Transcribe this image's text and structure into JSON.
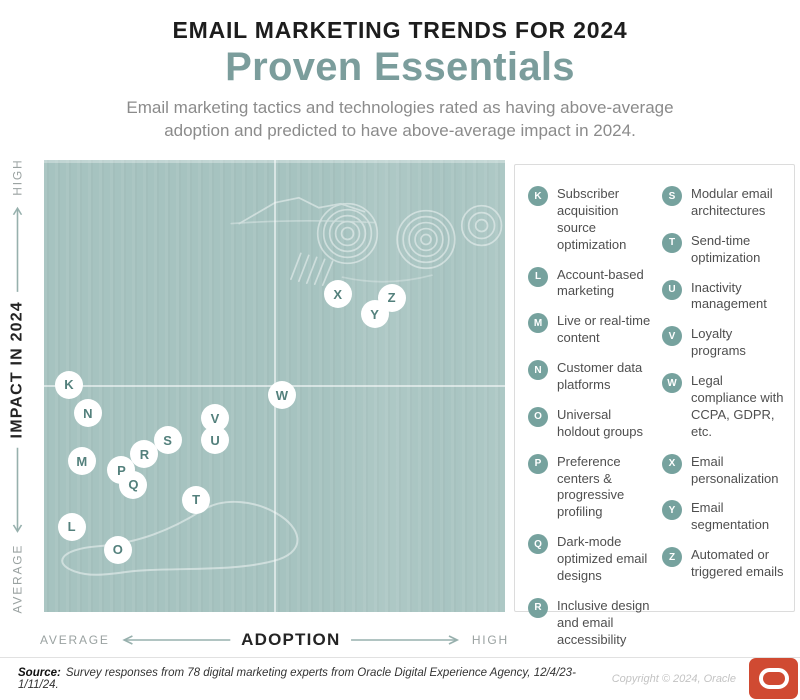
{
  "header": {
    "title": "EMAIL MARKETING TRENDS FOR 2024",
    "subtitle": "Proven Essentials",
    "description": "Email marketing tactics and technologies rated as having above-average adoption and predicted to have above-average impact in 2024."
  },
  "colors": {
    "chart_background": "#a6c3c0",
    "accent_teal": "#7b9d9c",
    "badge_teal": "#76a29e",
    "marker_letter_teal": "#53807c",
    "title_dark": "#1d1d1d",
    "description_gray": "#8b8b8b",
    "oracle_red": "#d04a32"
  },
  "axes": {
    "y": {
      "label": "IMPACT IN 2024",
      "top_end": "HIGH",
      "bottom_end": "AVERAGE"
    },
    "x": {
      "label": "ADOPTION",
      "left_end": "AVERAGE",
      "right_end": "HIGH"
    }
  },
  "chart_data": {
    "type": "scatter",
    "title": "Proven Essentials — Email Marketing Trends for 2024",
    "xlabel": "ADOPTION",
    "ylabel": "IMPACT IN 2024",
    "x_axis_range_labels": [
      "AVERAGE",
      "HIGH"
    ],
    "y_axis_range_labels": [
      "AVERAGE",
      "HIGH"
    ],
    "quadrant_crosshair": true,
    "points": [
      {
        "id": "K",
        "label": "Subscriber acquisition source optimization",
        "x_pct": 5.4,
        "y_pct": 49.7
      },
      {
        "id": "L",
        "label": "Account-based marketing",
        "x_pct": 6.0,
        "y_pct": 81.1
      },
      {
        "id": "M",
        "label": "Live or real-time content",
        "x_pct": 8.2,
        "y_pct": 66.6
      },
      {
        "id": "N",
        "label": "Customer data platforms",
        "x_pct": 9.5,
        "y_pct": 56.0
      },
      {
        "id": "O",
        "label": "Universal holdout groups",
        "x_pct": 16.0,
        "y_pct": 86.2
      },
      {
        "id": "P",
        "label": "Preference centers & progressive profiling",
        "x_pct": 16.8,
        "y_pct": 68.6
      },
      {
        "id": "Q",
        "label": "Dark-mode optimized email designs",
        "x_pct": 19.4,
        "y_pct": 71.9
      },
      {
        "id": "R",
        "label": "Inclusive design and email accessibility",
        "x_pct": 21.8,
        "y_pct": 65.1
      },
      {
        "id": "S",
        "label": "Modular email architectures",
        "x_pct": 26.8,
        "y_pct": 62.0
      },
      {
        "id": "T",
        "label": "Send-time optimization",
        "x_pct": 33.0,
        "y_pct": 75.2
      },
      {
        "id": "U",
        "label": "Inactivity management",
        "x_pct": 37.1,
        "y_pct": 62.0
      },
      {
        "id": "V",
        "label": "Loyalty programs",
        "x_pct": 37.1,
        "y_pct": 57.1
      },
      {
        "id": "W",
        "label": "Legal compliance with CCPA, GDPR, etc.",
        "x_pct": 51.6,
        "y_pct": 52.1
      },
      {
        "id": "X",
        "label": "Email personalization",
        "x_pct": 63.7,
        "y_pct": 29.7
      },
      {
        "id": "Y",
        "label": "Email segmentation",
        "x_pct": 71.7,
        "y_pct": 34.1
      },
      {
        "id": "Z",
        "label": "Automated or triggered emails",
        "x_pct": 75.4,
        "y_pct": 30.5
      }
    ]
  },
  "legend": {
    "columns": [
      [
        {
          "id": "K",
          "label": "Subscriber acquisition source optimization"
        },
        {
          "id": "L",
          "label": "Account-based marketing"
        },
        {
          "id": "M",
          "label": "Live or real-time content"
        },
        {
          "id": "N",
          "label": "Customer data platforms"
        },
        {
          "id": "O",
          "label": "Universal holdout groups"
        },
        {
          "id": "P",
          "label": "Preference centers & progressive profiling"
        },
        {
          "id": "Q",
          "label": "Dark-mode optimized email designs"
        },
        {
          "id": "R",
          "label": "Inclusive design and email accessibility"
        }
      ],
      [
        {
          "id": "S",
          "label": "Modular email architectures"
        },
        {
          "id": "T",
          "label": "Send-time optimization"
        },
        {
          "id": "U",
          "label": "Inactivity management"
        },
        {
          "id": "V",
          "label": "Loyalty programs"
        },
        {
          "id": "W",
          "label": "Legal compliance with CCPA, GDPR, etc."
        },
        {
          "id": "X",
          "label": "Email personalization"
        },
        {
          "id": "Y",
          "label": "Email segmentation"
        },
        {
          "id": "Z",
          "label": "Automated or triggered emails"
        }
      ]
    ]
  },
  "footer": {
    "source_label": "Source:",
    "source_text": "Survey responses from 78 digital marketing experts from Oracle Digital Experience Agency, 12/4/23-1/11/24.",
    "copyright": "Copyright © 2024, Oracle"
  }
}
